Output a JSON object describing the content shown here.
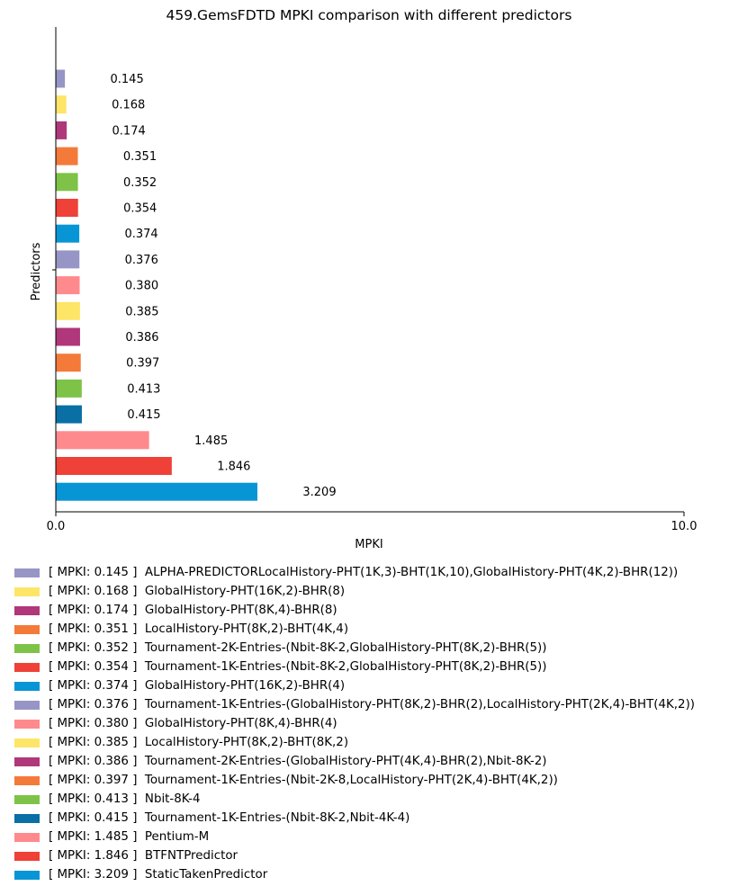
{
  "chart_data": {
    "type": "bar",
    "orientation": "horizontal",
    "title": "459.GemsFDTD MPKI comparison with different predictors",
    "xlabel": "MPKI",
    "ylabel": "Predictors",
    "xlim": [
      0.0,
      10.0
    ],
    "x_ticks": [
      "0.0",
      "10.0"
    ],
    "grid": false,
    "legend_position": "bottom",
    "bars": [
      {
        "label": "ALPHA-PREDICTORLocalHistory-PHT(1K,3)-BHT(1K,10),GlobalHistory-PHT(4K,2)-BHR(12))",
        "value": 0.145,
        "value_label": "0.145",
        "legend_text": "[ MPKI: 0.145 ]  ALPHA-PREDICTORLocalHistory-PHT(1K,3)-BHT(1K,10),GlobalHistory-PHT(4K,2)-BHR(12))",
        "color": "#9795c6"
      },
      {
        "label": "GlobalHistory-PHT(16K,2)-BHR(8)",
        "value": 0.168,
        "value_label": "0.168",
        "legend_text": "[ MPKI: 0.168 ]  GlobalHistory-PHT(16K,2)-BHR(8)",
        "color": "#fde568"
      },
      {
        "label": "GlobalHistory-PHT(8K,4)-BHR(8)",
        "value": 0.174,
        "value_label": "0.174",
        "legend_text": "[ MPKI: 0.174 ]  GlobalHistory-PHT(8K,4)-BHR(8)",
        "color": "#b0377a"
      },
      {
        "label": "LocalHistory-PHT(8K,2)-BHT(4K,4)",
        "value": 0.351,
        "value_label": "0.351",
        "legend_text": "[ MPKI: 0.351 ]  LocalHistory-PHT(8K,2)-BHT(4K,4)",
        "color": "#f47a3a"
      },
      {
        "label": "Tournament-2K-Entries-(Nbit-8K-2,GlobalHistory-PHT(8K,2)-BHR(5))",
        "value": 0.352,
        "value_label": "0.352",
        "legend_text": "[ MPKI: 0.352 ]  Tournament-2K-Entries-(Nbit-8K-2,GlobalHistory-PHT(8K,2)-BHR(5))",
        "color": "#7ec347"
      },
      {
        "label": "Tournament-1K-Entries-(Nbit-8K-2,GlobalHistory-PHT(8K,2)-BHR(5))",
        "value": 0.354,
        "value_label": "0.354",
        "legend_text": "[ MPKI: 0.354 ]  Tournament-1K-Entries-(Nbit-8K-2,GlobalHistory-PHT(8K,2)-BHR(5))",
        "color": "#ef4138"
      },
      {
        "label": "GlobalHistory-PHT(16K,2)-BHR(4)",
        "value": 0.374,
        "value_label": "0.374",
        "legend_text": "[ MPKI: 0.374 ]  GlobalHistory-PHT(16K,2)-BHR(4)",
        "color": "#0895d6"
      },
      {
        "label": "Tournament-1K-Entries-(GlobalHistory-PHT(8K,2)-BHR(2),LocalHistory-PHT(2K,4)-BHT(4K,2))",
        "value": 0.376,
        "value_label": "0.376",
        "legend_text": "[ MPKI: 0.376 ]  Tournament-1K-Entries-(GlobalHistory-PHT(8K,2)-BHR(2),LocalHistory-PHT(2K,4)-BHT(4K,2))",
        "color": "#9795c6"
      },
      {
        "label": "GlobalHistory-PHT(8K,4)-BHR(4)",
        "value": 0.38,
        "value_label": "0.380",
        "legend_text": "[ MPKI: 0.380 ]  GlobalHistory-PHT(8K,4)-BHR(4)",
        "color": "#ff8a8e"
      },
      {
        "label": "LocalHistory-PHT(8K,2)-BHT(8K,2)",
        "value": 0.385,
        "value_label": "0.385",
        "legend_text": "[ MPKI: 0.385 ]  LocalHistory-PHT(8K,2)-BHT(8K,2)",
        "color": "#fde568"
      },
      {
        "label": "Tournament-2K-Entries-(GlobalHistory-PHT(4K,4)-BHR(2),Nbit-8K-2)",
        "value": 0.386,
        "value_label": "0.386",
        "legend_text": "[ MPKI: 0.386 ]  Tournament-2K-Entries-(GlobalHistory-PHT(4K,4)-BHR(2),Nbit-8K-2)",
        "color": "#b0377a"
      },
      {
        "label": "Tournament-1K-Entries-(Nbit-2K-8,LocalHistory-PHT(2K,4)-BHT(4K,2))",
        "value": 0.397,
        "value_label": "0.397",
        "legend_text": "[ MPKI: 0.397 ]  Tournament-1K-Entries-(Nbit-2K-8,LocalHistory-PHT(2K,4)-BHT(4K,2))",
        "color": "#f47a3a"
      },
      {
        "label": "Nbit-8K-4",
        "value": 0.413,
        "value_label": "0.413",
        "legend_text": "[ MPKI: 0.413 ]  Nbit-8K-4",
        "color": "#7ec347"
      },
      {
        "label": "Tournament-1K-Entries-(Nbit-8K-2,Nbit-4K-4)",
        "value": 0.415,
        "value_label": "0.415",
        "legend_text": "[ MPKI: 0.415 ]  Tournament-1K-Entries-(Nbit-8K-2,Nbit-4K-4)",
        "color": "#0a6fa5"
      },
      {
        "label": "Pentium-M",
        "value": 1.485,
        "value_label": "1.485",
        "legend_text": "[ MPKI: 1.485 ]  Pentium-M",
        "color": "#ff8a8e"
      },
      {
        "label": "BTFNTPredictor",
        "value": 1.846,
        "value_label": "1.846",
        "legend_text": "[ MPKI: 1.846 ]  BTFNTPredictor",
        "color": "#ef4138"
      },
      {
        "label": "StaticTakenPredictor",
        "value": 3.209,
        "value_label": "3.209",
        "legend_text": "[ MPKI: 3.209 ]  StaticTakenPredictor",
        "color": "#0895d6"
      }
    ]
  }
}
